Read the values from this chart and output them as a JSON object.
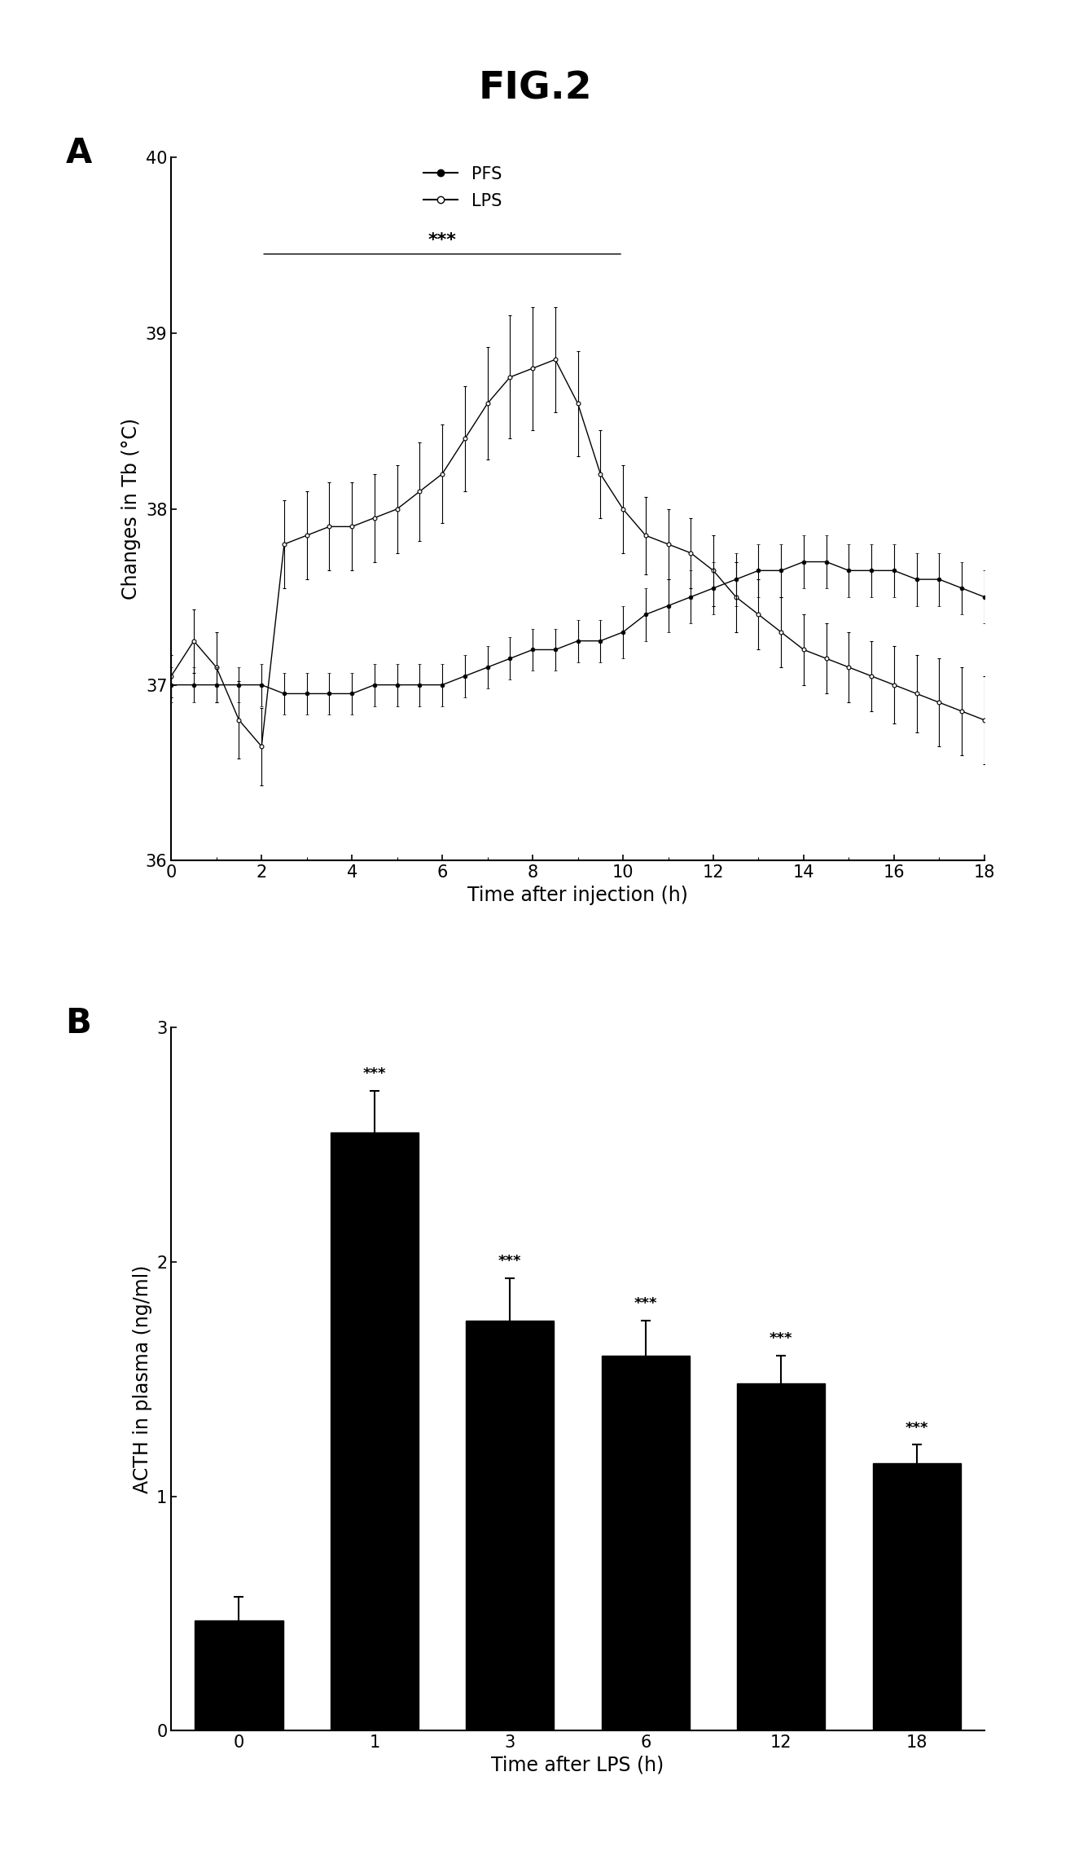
{
  "title": "FIG.2",
  "panel_A": {
    "label": "A",
    "xlabel": "Time after injection (h)",
    "ylabel": "Changes in Tb (°C)",
    "xlim": [
      0,
      18
    ],
    "ylim": [
      36,
      40
    ],
    "yticks": [
      36,
      37,
      38,
      39,
      40
    ],
    "xticks": [
      0,
      2,
      4,
      6,
      8,
      10,
      12,
      14,
      16,
      18
    ],
    "significance_bracket": {
      "x_start": 2,
      "x_end": 10,
      "y": 39.45,
      "text": "***"
    },
    "PFS": {
      "x": [
        0,
        0.5,
        1,
        1.5,
        2,
        2.5,
        3,
        3.5,
        4,
        4.5,
        5,
        5.5,
        6,
        6.5,
        7,
        7.5,
        8,
        8.5,
        9,
        9.5,
        10,
        10.5,
        11,
        11.5,
        12,
        12.5,
        13,
        13.5,
        14,
        14.5,
        15,
        15.5,
        16,
        16.5,
        17,
        17.5,
        18
      ],
      "y": [
        37.0,
        37.0,
        37.0,
        37.0,
        37.0,
        36.95,
        36.95,
        36.95,
        36.95,
        37.0,
        37.0,
        37.0,
        37.0,
        37.05,
        37.1,
        37.15,
        37.2,
        37.2,
        37.25,
        37.25,
        37.3,
        37.4,
        37.45,
        37.5,
        37.55,
        37.6,
        37.65,
        37.65,
        37.7,
        37.7,
        37.65,
        37.65,
        37.65,
        37.6,
        37.6,
        37.55,
        37.5
      ],
      "yerr": [
        0.1,
        0.1,
        0.1,
        0.1,
        0.12,
        0.12,
        0.12,
        0.12,
        0.12,
        0.12,
        0.12,
        0.12,
        0.12,
        0.12,
        0.12,
        0.12,
        0.12,
        0.12,
        0.12,
        0.12,
        0.15,
        0.15,
        0.15,
        0.15,
        0.15,
        0.15,
        0.15,
        0.15,
        0.15,
        0.15,
        0.15,
        0.15,
        0.15,
        0.15,
        0.15,
        0.15,
        0.15
      ],
      "label": "PFS"
    },
    "LPS": {
      "x": [
        0,
        0.5,
        1,
        1.5,
        2,
        2.5,
        3,
        3.5,
        4,
        4.5,
        5,
        5.5,
        6,
        6.5,
        7,
        7.5,
        8,
        8.5,
        9,
        9.5,
        10,
        10.5,
        11,
        11.5,
        12,
        12.5,
        13,
        13.5,
        14,
        14.5,
        15,
        15.5,
        16,
        16.5,
        17,
        17.5,
        18
      ],
      "y": [
        37.05,
        37.25,
        37.1,
        36.8,
        36.65,
        37.8,
        37.85,
        37.9,
        37.9,
        37.95,
        38.0,
        38.1,
        38.2,
        38.4,
        38.6,
        38.75,
        38.8,
        38.85,
        38.6,
        38.2,
        38.0,
        37.85,
        37.8,
        37.75,
        37.65,
        37.5,
        37.4,
        37.3,
        37.2,
        37.15,
        37.1,
        37.05,
        37.0,
        36.95,
        36.9,
        36.85,
        36.8
      ],
      "yerr": [
        0.12,
        0.18,
        0.2,
        0.22,
        0.22,
        0.25,
        0.25,
        0.25,
        0.25,
        0.25,
        0.25,
        0.28,
        0.28,
        0.3,
        0.32,
        0.35,
        0.35,
        0.3,
        0.3,
        0.25,
        0.25,
        0.22,
        0.2,
        0.2,
        0.2,
        0.2,
        0.2,
        0.2,
        0.2,
        0.2,
        0.2,
        0.2,
        0.22,
        0.22,
        0.25,
        0.25,
        0.25
      ],
      "label": "LPS"
    }
  },
  "panel_B": {
    "label": "B",
    "xlabel": "Time after LPS (h)",
    "ylabel": "ACTH in plasma (ng/ml)",
    "xlim": [
      -0.5,
      5.5
    ],
    "ylim": [
      0,
      3
    ],
    "yticks": [
      0,
      1,
      2,
      3
    ],
    "xtick_labels": [
      "0",
      "1",
      "3",
      "6",
      "12",
      "18"
    ],
    "bar_color": "black",
    "bar_values": [
      0.47,
      2.55,
      1.75,
      1.6,
      1.48,
      1.14
    ],
    "bar_errors": [
      0.1,
      0.18,
      0.18,
      0.15,
      0.12,
      0.08
    ],
    "significance": [
      "",
      "***",
      "***",
      "***",
      "***",
      "***"
    ]
  }
}
